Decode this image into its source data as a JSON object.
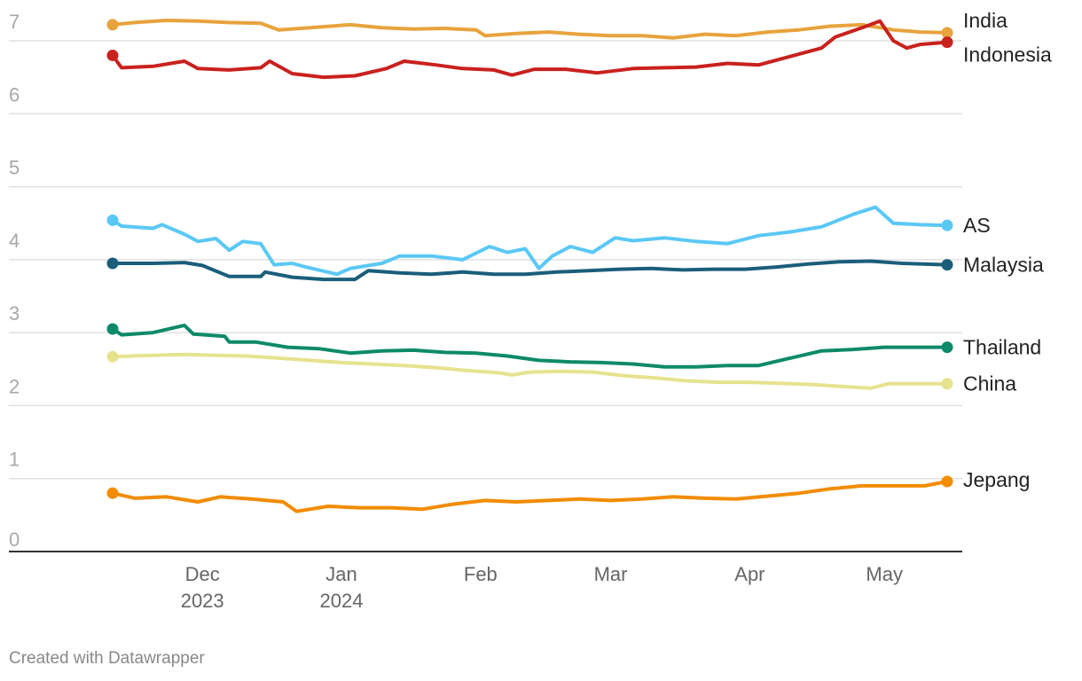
{
  "footer": {
    "credit": "Created with Datawrapper"
  },
  "chart_data": {
    "type": "line",
    "title": "",
    "xlabel": "",
    "ylabel": "",
    "ylim": [
      0,
      7
    ],
    "y_ticks": [
      "0",
      "1",
      "2",
      "3",
      "4",
      "5",
      "6",
      "7"
    ],
    "x_ticks": [
      {
        "date": "2023-12-01",
        "lines": [
          "Dec",
          "2023"
        ]
      },
      {
        "date": "2024-01-01",
        "lines": [
          "Jan",
          "2024"
        ]
      },
      {
        "date": "2024-02-01",
        "lines": [
          "Feb"
        ]
      },
      {
        "date": "2024-03-01",
        "lines": [
          "Mar"
        ]
      },
      {
        "date": "2024-04-01",
        "lines": [
          "Apr"
        ]
      },
      {
        "date": "2024-05-01",
        "lines": [
          "May"
        ]
      }
    ],
    "x_range": [
      "2023-11-11",
      "2024-05-15"
    ],
    "grid": true,
    "legend": "direct labels at right end",
    "series": [
      {
        "name": "India",
        "color": "#e8a33d",
        "points": [
          [
            "2023-11-11",
            7.22
          ],
          [
            "2023-11-16",
            7.25
          ],
          [
            "2023-11-23",
            7.28
          ],
          [
            "2023-11-30",
            7.27
          ],
          [
            "2023-12-07",
            7.25
          ],
          [
            "2023-12-14",
            7.24
          ],
          [
            "2023-12-18",
            7.15
          ],
          [
            "2023-12-25",
            7.18
          ],
          [
            "2024-01-03",
            7.22
          ],
          [
            "2024-01-10",
            7.18
          ],
          [
            "2024-01-17",
            7.16
          ],
          [
            "2024-01-24",
            7.17
          ],
          [
            "2024-01-31",
            7.15
          ],
          [
            "2024-02-02",
            7.07
          ],
          [
            "2024-02-09",
            7.1
          ],
          [
            "2024-02-16",
            7.12
          ],
          [
            "2024-02-23",
            7.09
          ],
          [
            "2024-03-01",
            7.07
          ],
          [
            "2024-03-08",
            7.07
          ],
          [
            "2024-03-15",
            7.04
          ],
          [
            "2024-03-22",
            7.09
          ],
          [
            "2024-03-29",
            7.07
          ],
          [
            "2024-04-05",
            7.12
          ],
          [
            "2024-04-12",
            7.15
          ],
          [
            "2024-04-19",
            7.2
          ],
          [
            "2024-04-26",
            7.22
          ],
          [
            "2024-05-03",
            7.15
          ],
          [
            "2024-05-09",
            7.12
          ],
          [
            "2024-05-15",
            7.11
          ]
        ]
      },
      {
        "name": "Indonesia",
        "color": "#c9211e",
        "points": [
          [
            "2023-11-11",
            6.8
          ],
          [
            "2023-11-13",
            6.63
          ],
          [
            "2023-11-20",
            6.65
          ],
          [
            "2023-11-27",
            6.72
          ],
          [
            "2023-11-30",
            6.62
          ],
          [
            "2023-12-07",
            6.6
          ],
          [
            "2023-12-14",
            6.63
          ],
          [
            "2023-12-16",
            6.72
          ],
          [
            "2023-12-21",
            6.55
          ],
          [
            "2023-12-28",
            6.5
          ],
          [
            "2024-01-04",
            6.52
          ],
          [
            "2024-01-11",
            6.62
          ],
          [
            "2024-01-15",
            6.72
          ],
          [
            "2024-01-22",
            6.67
          ],
          [
            "2024-01-28",
            6.62
          ],
          [
            "2024-02-04",
            6.6
          ],
          [
            "2024-02-08",
            6.53
          ],
          [
            "2024-02-13",
            6.61
          ],
          [
            "2024-02-20",
            6.61
          ],
          [
            "2024-02-27",
            6.56
          ],
          [
            "2024-03-06",
            6.62
          ],
          [
            "2024-03-13",
            6.63
          ],
          [
            "2024-03-20",
            6.64
          ],
          [
            "2024-03-27",
            6.69
          ],
          [
            "2024-04-03",
            6.67
          ],
          [
            "2024-04-17",
            6.9
          ],
          [
            "2024-04-20",
            7.05
          ],
          [
            "2024-04-27",
            7.2
          ],
          [
            "2024-04-30",
            7.27
          ],
          [
            "2024-05-03",
            7.0
          ],
          [
            "2024-05-06",
            6.9
          ],
          [
            "2024-05-09",
            6.95
          ],
          [
            "2024-05-15",
            6.98
          ]
        ]
      },
      {
        "name": "AS",
        "color": "#5ac8f5",
        "points": [
          [
            "2023-11-11",
            4.54
          ],
          [
            "2023-11-13",
            4.46
          ],
          [
            "2023-11-20",
            4.43
          ],
          [
            "2023-11-22",
            4.48
          ],
          [
            "2023-11-27",
            4.35
          ],
          [
            "2023-11-30",
            4.25
          ],
          [
            "2023-12-04",
            4.29
          ],
          [
            "2023-12-07",
            4.13
          ],
          [
            "2023-12-10",
            4.25
          ],
          [
            "2023-12-14",
            4.22
          ],
          [
            "2023-12-17",
            3.93
          ],
          [
            "2023-12-21",
            3.95
          ],
          [
            "2023-12-24",
            3.9
          ],
          [
            "2023-12-31",
            3.8
          ],
          [
            "2024-01-03",
            3.88
          ],
          [
            "2024-01-10",
            3.95
          ],
          [
            "2024-01-14",
            4.05
          ],
          [
            "2024-01-21",
            4.05
          ],
          [
            "2024-01-28",
            4.0
          ],
          [
            "2024-02-03",
            4.18
          ],
          [
            "2024-02-07",
            4.1
          ],
          [
            "2024-02-11",
            4.15
          ],
          [
            "2024-02-14",
            3.88
          ],
          [
            "2024-02-17",
            4.05
          ],
          [
            "2024-02-21",
            4.18
          ],
          [
            "2024-02-26",
            4.1
          ],
          [
            "2024-03-02",
            4.3
          ],
          [
            "2024-03-06",
            4.26
          ],
          [
            "2024-03-13",
            4.3
          ],
          [
            "2024-03-20",
            4.25
          ],
          [
            "2024-03-27",
            4.22
          ],
          [
            "2024-04-03",
            4.33
          ],
          [
            "2024-04-10",
            4.38
          ],
          [
            "2024-04-17",
            4.45
          ],
          [
            "2024-04-24",
            4.62
          ],
          [
            "2024-04-29",
            4.72
          ],
          [
            "2024-05-03",
            4.5
          ],
          [
            "2024-05-09",
            4.48
          ],
          [
            "2024-05-15",
            4.47
          ]
        ]
      },
      {
        "name": "Malaysia",
        "color": "#1a5e7a",
        "points": [
          [
            "2023-11-11",
            3.95
          ],
          [
            "2023-11-20",
            3.95
          ],
          [
            "2023-11-27",
            3.96
          ],
          [
            "2023-12-01",
            3.92
          ],
          [
            "2023-12-07",
            3.77
          ],
          [
            "2023-12-14",
            3.77
          ],
          [
            "2023-12-15",
            3.83
          ],
          [
            "2023-12-21",
            3.76
          ],
          [
            "2023-12-28",
            3.73
          ],
          [
            "2024-01-04",
            3.73
          ],
          [
            "2024-01-07",
            3.85
          ],
          [
            "2024-01-14",
            3.82
          ],
          [
            "2024-01-21",
            3.8
          ],
          [
            "2024-01-28",
            3.83
          ],
          [
            "2024-02-04",
            3.8
          ],
          [
            "2024-02-11",
            3.8
          ],
          [
            "2024-02-18",
            3.83
          ],
          [
            "2024-02-25",
            3.85
          ],
          [
            "2024-03-03",
            3.87
          ],
          [
            "2024-03-10",
            3.88
          ],
          [
            "2024-03-17",
            3.86
          ],
          [
            "2024-03-24",
            3.87
          ],
          [
            "2024-03-31",
            3.87
          ],
          [
            "2024-04-07",
            3.9
          ],
          [
            "2024-04-14",
            3.94
          ],
          [
            "2024-04-21",
            3.97
          ],
          [
            "2024-04-28",
            3.98
          ],
          [
            "2024-05-05",
            3.95
          ],
          [
            "2024-05-15",
            3.93
          ]
        ]
      },
      {
        "name": "Thailand",
        "color": "#0d8a6a",
        "points": [
          [
            "2023-11-11",
            3.05
          ],
          [
            "2023-11-13",
            2.97
          ],
          [
            "2023-11-20",
            3.0
          ],
          [
            "2023-11-27",
            3.1
          ],
          [
            "2023-11-29",
            2.98
          ],
          [
            "2023-12-06",
            2.95
          ],
          [
            "2023-12-07",
            2.87
          ],
          [
            "2023-12-13",
            2.87
          ],
          [
            "2023-12-20",
            2.8
          ],
          [
            "2023-12-27",
            2.78
          ],
          [
            "2024-01-03",
            2.72
          ],
          [
            "2024-01-10",
            2.75
          ],
          [
            "2024-01-17",
            2.76
          ],
          [
            "2024-01-24",
            2.73
          ],
          [
            "2024-01-31",
            2.72
          ],
          [
            "2024-02-07",
            2.68
          ],
          [
            "2024-02-14",
            2.62
          ],
          [
            "2024-02-21",
            2.6
          ],
          [
            "2024-02-28",
            2.59
          ],
          [
            "2024-03-06",
            2.57
          ],
          [
            "2024-03-13",
            2.53
          ],
          [
            "2024-03-20",
            2.53
          ],
          [
            "2024-03-27",
            2.55
          ],
          [
            "2024-04-03",
            2.55
          ],
          [
            "2024-04-10",
            2.65
          ],
          [
            "2024-04-17",
            2.75
          ],
          [
            "2024-04-24",
            2.77
          ],
          [
            "2024-05-01",
            2.8
          ],
          [
            "2024-05-08",
            2.8
          ],
          [
            "2024-05-15",
            2.8
          ]
        ]
      },
      {
        "name": "China",
        "color": "#e6e28e",
        "points": [
          [
            "2023-11-11",
            2.67
          ],
          [
            "2023-11-20",
            2.69
          ],
          [
            "2023-11-27",
            2.7
          ],
          [
            "2023-12-04",
            2.69
          ],
          [
            "2023-12-11",
            2.68
          ],
          [
            "2023-12-18",
            2.65
          ],
          [
            "2023-12-25",
            2.62
          ],
          [
            "2024-01-01",
            2.59
          ],
          [
            "2024-01-08",
            2.57
          ],
          [
            "2024-01-15",
            2.55
          ],
          [
            "2024-01-22",
            2.52
          ],
          [
            "2024-01-29",
            2.48
          ],
          [
            "2024-02-05",
            2.45
          ],
          [
            "2024-02-08",
            2.42
          ],
          [
            "2024-02-12",
            2.46
          ],
          [
            "2024-02-19",
            2.47
          ],
          [
            "2024-02-26",
            2.46
          ],
          [
            "2024-03-04",
            2.41
          ],
          [
            "2024-03-11",
            2.38
          ],
          [
            "2024-03-18",
            2.34
          ],
          [
            "2024-03-25",
            2.32
          ],
          [
            "2024-04-01",
            2.32
          ],
          [
            "2024-04-15",
            2.29
          ],
          [
            "2024-04-22",
            2.26
          ],
          [
            "2024-04-28",
            2.24
          ],
          [
            "2024-05-02",
            2.3
          ],
          [
            "2024-05-15",
            2.3
          ]
        ]
      },
      {
        "name": "Jepang",
        "color": "#f28c00",
        "points": [
          [
            "2023-11-11",
            0.8
          ],
          [
            "2023-11-16",
            0.73
          ],
          [
            "2023-11-23",
            0.75
          ],
          [
            "2023-11-30",
            0.68
          ],
          [
            "2023-12-05",
            0.75
          ],
          [
            "2023-12-12",
            0.72
          ],
          [
            "2023-12-19",
            0.68
          ],
          [
            "2023-12-22",
            0.55
          ],
          [
            "2023-12-29",
            0.62
          ],
          [
            "2024-01-05",
            0.6
          ],
          [
            "2024-01-12",
            0.6
          ],
          [
            "2024-01-19",
            0.58
          ],
          [
            "2024-01-26",
            0.65
          ],
          [
            "2024-02-02",
            0.7
          ],
          [
            "2024-02-09",
            0.68
          ],
          [
            "2024-02-16",
            0.7
          ],
          [
            "2024-02-23",
            0.72
          ],
          [
            "2024-03-01",
            0.7
          ],
          [
            "2024-03-08",
            0.72
          ],
          [
            "2024-03-15",
            0.75
          ],
          [
            "2024-03-22",
            0.73
          ],
          [
            "2024-03-29",
            0.72
          ],
          [
            "2024-04-05",
            0.76
          ],
          [
            "2024-04-12",
            0.8
          ],
          [
            "2024-04-19",
            0.86
          ],
          [
            "2024-04-26",
            0.9
          ],
          [
            "2024-05-03",
            0.9
          ],
          [
            "2024-05-10",
            0.9
          ],
          [
            "2024-05-15",
            0.96
          ]
        ]
      }
    ]
  }
}
